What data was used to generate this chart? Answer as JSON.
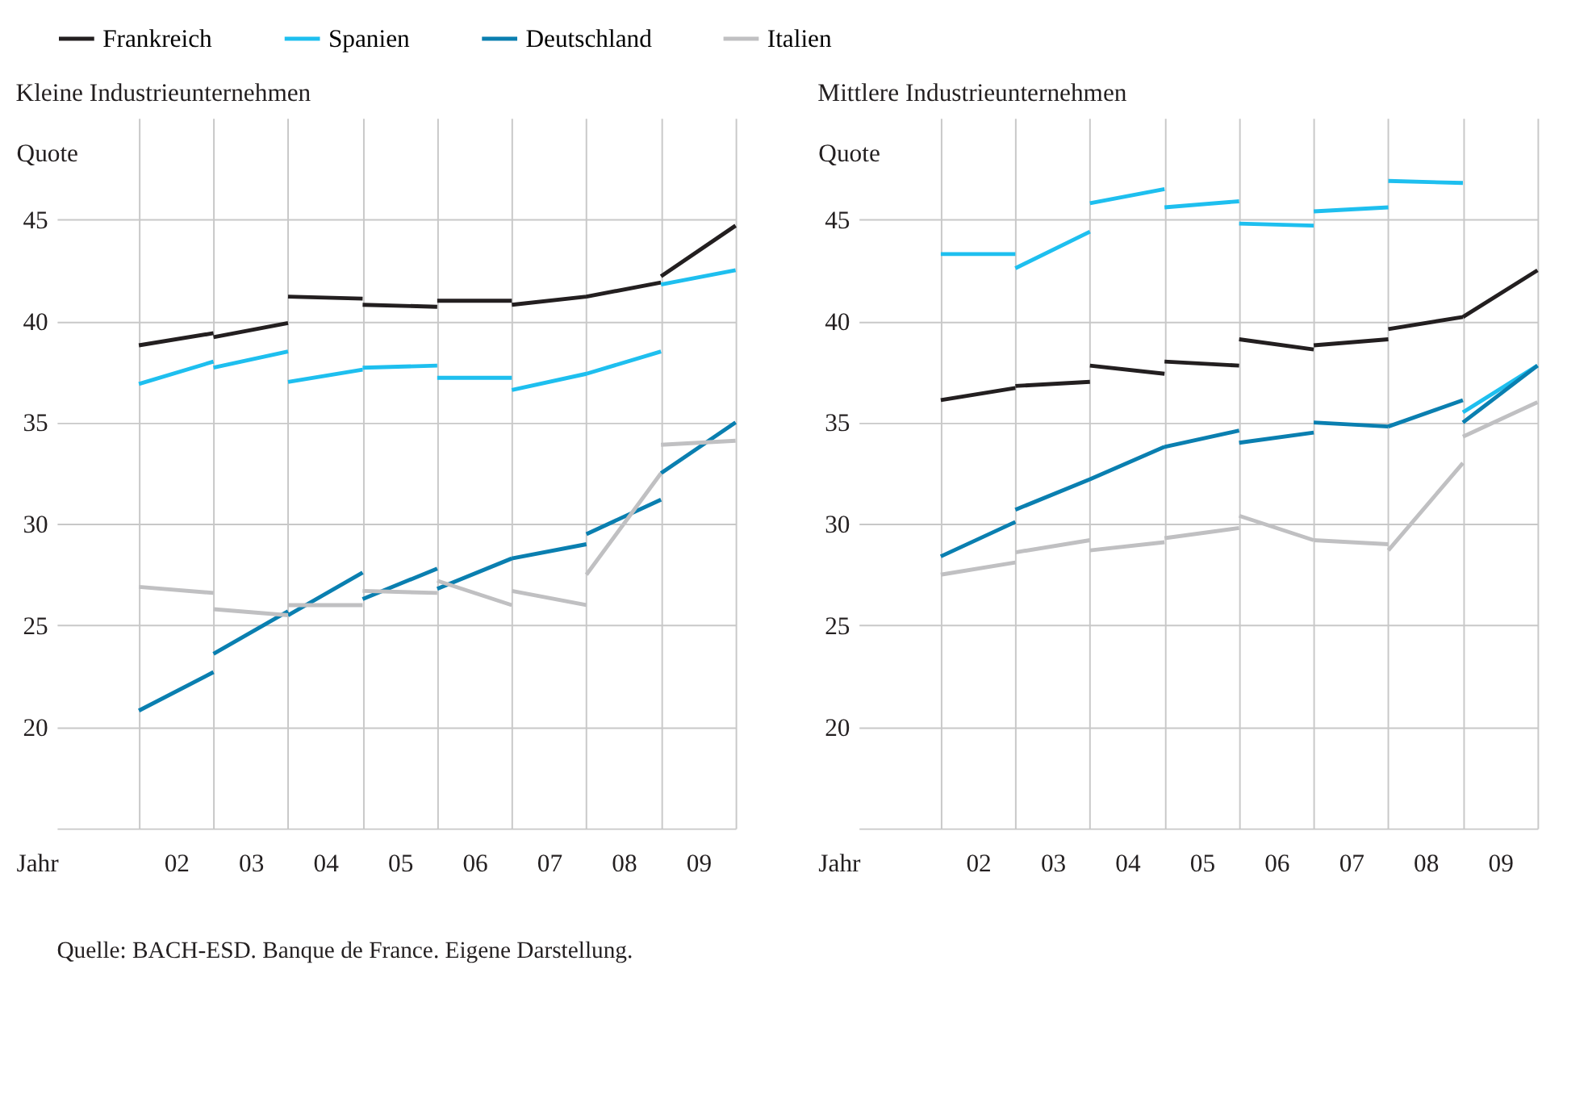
{
  "chart_data": [
    {
      "type": "line",
      "title": "Kleine Industrieunternehmen",
      "xlabel": "Jahr",
      "ylabel": "Quote",
      "legend": "top",
      "grid": true,
      "x": [
        2001.5,
        2002.5,
        null,
        2002.5,
        2003.5,
        null,
        2003.5,
        2004.5,
        null,
        2004.5,
        2005.5,
        null,
        2005.5,
        2006.5,
        null,
        2006.5,
        2007.5,
        null,
        2007.5,
        2008.5,
        null,
        2008.5,
        2009.5
      ],
      "xlim": [
        2000.4,
        2009.5
      ],
      "ylim": [
        15,
        50
      ],
      "xticks": [
        {
          "value": 2001.5,
          "label": null
        },
        {
          "value": 2002,
          "label": "02"
        },
        {
          "value": 2002.5,
          "label": null
        },
        {
          "value": 2003,
          "label": "03"
        },
        {
          "value": 2003.5,
          "label": null
        },
        {
          "value": 2004,
          "label": "04"
        },
        {
          "value": 2004.5,
          "label": null
        },
        {
          "value": 2005,
          "label": "05"
        },
        {
          "value": 2005.5,
          "label": null
        },
        {
          "value": 2006,
          "label": "06"
        },
        {
          "value": 2006.5,
          "label": null
        },
        {
          "value": 2007,
          "label": "07"
        },
        {
          "value": 2007.5,
          "label": null
        },
        {
          "value": 2008,
          "label": "08"
        },
        {
          "value": 2008.5,
          "label": null
        },
        {
          "value": 2009,
          "label": "09"
        },
        {
          "value": 2009.5,
          "label": null
        }
      ],
      "yticks": [
        20,
        25,
        30,
        35,
        40,
        45
      ],
      "series": [
        {
          "name": "Frankreich",
          "color": "#231f20",
          "values": [
            38.8,
            39.4,
            null,
            39.2,
            39.9,
            null,
            41.2,
            41.1,
            null,
            40.8,
            40.7,
            null,
            41.0,
            41.0,
            null,
            40.8,
            41.2,
            null,
            41.2,
            41.9,
            null,
            42.2,
            44.7
          ]
        },
        {
          "name": "Spanien",
          "color": "#1ebfef",
          "values": [
            36.9,
            38.0,
            null,
            37.7,
            38.5,
            null,
            37.0,
            37.6,
            null,
            37.7,
            37.8,
            null,
            37.2,
            37.2,
            null,
            36.6,
            37.4,
            null,
            37.4,
            38.5,
            null,
            41.8,
            42.5
          ]
        },
        {
          "name": "Deutschland",
          "color": "#0a7fb0",
          "values": [
            20.8,
            22.7,
            null,
            23.6,
            25.7,
            null,
            25.5,
            27.6,
            null,
            26.3,
            27.8,
            null,
            26.8,
            28.3,
            null,
            28.3,
            29.0,
            null,
            29.5,
            31.2,
            null,
            32.5,
            35.0
          ]
        },
        {
          "name": "Italien",
          "color": "#c0c0c2",
          "values": [
            26.9,
            26.6,
            null,
            25.8,
            25.5,
            null,
            26.0,
            26.0,
            null,
            26.7,
            26.6,
            null,
            27.2,
            26.0,
            null,
            26.7,
            26.0,
            null,
            27.5,
            32.5,
            null,
            33.9,
            34.1
          ]
        }
      ],
      "annotations": [
        "Quelle: BACH-ESD. Banque de France. Eigene Darstellung."
      ]
    },
    {
      "type": "line",
      "title": "Mittlere Industrieunternehmen",
      "xlabel": "Jahr",
      "ylabel": "Quote",
      "legend": "top",
      "grid": true,
      "x": [
        2001.5,
        2002.5,
        null,
        2002.5,
        2003.5,
        null,
        2003.5,
        2004.5,
        null,
        2004.5,
        2005.5,
        null,
        2005.5,
        2006.5,
        null,
        2006.5,
        2007.5,
        null,
        2007.5,
        2008.5,
        null,
        2008.5,
        2009.5
      ],
      "xlim": [
        2000.4,
        2009.5
      ],
      "ylim": [
        15,
        50
      ],
      "xticks": [
        {
          "value": 2001.5,
          "label": null
        },
        {
          "value": 2002,
          "label": "02"
        },
        {
          "value": 2002.5,
          "label": null
        },
        {
          "value": 2003,
          "label": "03"
        },
        {
          "value": 2003.5,
          "label": null
        },
        {
          "value": 2004,
          "label": "04"
        },
        {
          "value": 2004.5,
          "label": null
        },
        {
          "value": 2005,
          "label": "05"
        },
        {
          "value": 2005.5,
          "label": null
        },
        {
          "value": 2006,
          "label": "06"
        },
        {
          "value": 2006.5,
          "label": null
        },
        {
          "value": 2007,
          "label": "07"
        },
        {
          "value": 2007.5,
          "label": null
        },
        {
          "value": 2008,
          "label": "08"
        },
        {
          "value": 2008.5,
          "label": null
        },
        {
          "value": 2009,
          "label": "09"
        },
        {
          "value": 2009.5,
          "label": null
        }
      ],
      "yticks": [
        20,
        25,
        30,
        35,
        40,
        45
      ],
      "series": [
        {
          "name": "Frankreich",
          "color": "#231f20",
          "values": [
            36.1,
            36.7,
            null,
            36.8,
            37.0,
            null,
            37.8,
            37.4,
            null,
            38.0,
            37.8,
            null,
            39.1,
            38.6,
            null,
            38.8,
            39.1,
            null,
            39.6,
            40.2,
            null,
            40.2,
            42.5
          ]
        },
        {
          "name": "Spanien",
          "color": "#1ebfef",
          "values": [
            43.3,
            43.3,
            null,
            42.6,
            44.4,
            null,
            45.8,
            46.5,
            null,
            45.6,
            45.9,
            null,
            44.8,
            44.7,
            null,
            45.4,
            45.6,
            null,
            46.9,
            46.8,
            null,
            35.5,
            37.8
          ]
        },
        {
          "name": "Deutschland",
          "color": "#0a7fb0",
          "values": [
            28.4,
            30.1,
            null,
            30.7,
            32.2,
            null,
            32.2,
            33.8,
            null,
            33.8,
            34.6,
            null,
            34.0,
            34.5,
            null,
            35.0,
            34.8,
            null,
            34.8,
            36.1,
            null,
            35.0,
            37.8
          ]
        },
        {
          "name": "Italien",
          "color": "#c0c0c2",
          "values": [
            27.5,
            28.1,
            null,
            28.6,
            29.2,
            null,
            28.7,
            29.1,
            null,
            29.3,
            29.8,
            null,
            30.4,
            29.2,
            null,
            29.2,
            29.0,
            null,
            28.7,
            33.0,
            null,
            34.3,
            36.0
          ]
        }
      ]
    }
  ]
}
